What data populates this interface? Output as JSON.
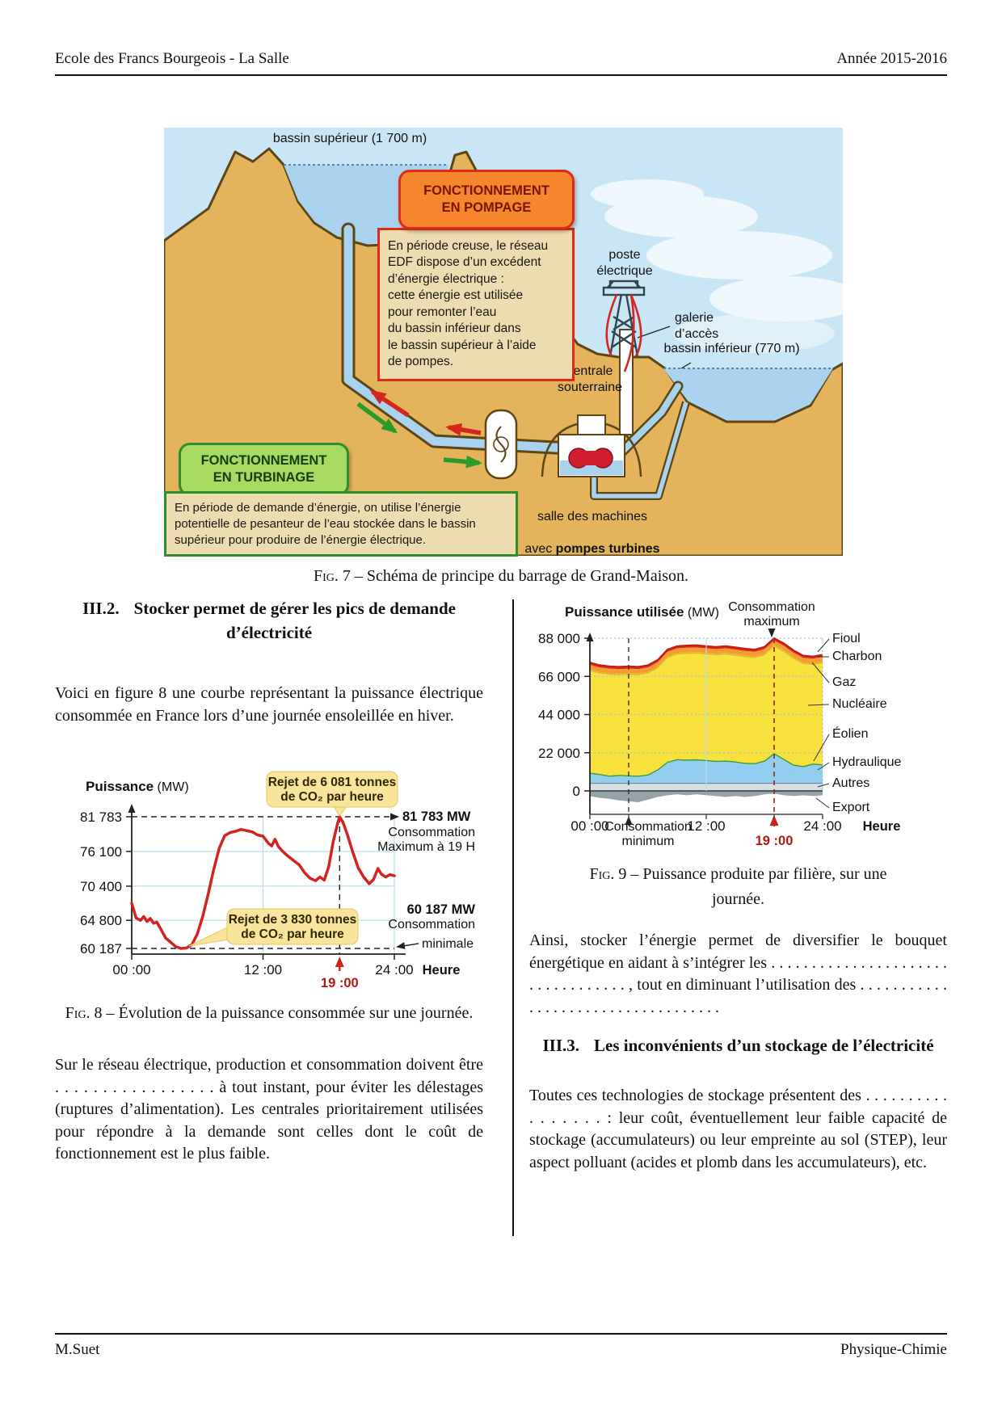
{
  "header": {
    "school": "Ecole des Francs Bourgeois - La Salle",
    "year": "Année 2015-2016"
  },
  "footer": {
    "author": "M.Suet",
    "subject": "Physique-Chimie"
  },
  "figure7": {
    "caption_prefix": "Fig. 7 –",
    "caption_text": "Schéma de principe du barrage de Grand-Maison.",
    "upper_basin": "bassin supérieur (1 700 m)",
    "lower_basin": "bassin inférieur (770 m)",
    "poste": "poste\nélectrique",
    "galerie": "galerie\nd’accès",
    "centrale": "centrale\nsouterraine",
    "salle_line1": "salle des machines",
    "salle_prefix": "avec ",
    "salle_bold": "pompes turbines",
    "pompage_title": "FONCTIONNEMENT\nEN POMPAGE",
    "pompage_body": "En période creuse, le réseau\nEDF dispose d’un excédent\nd’énergie électrique :\ncette én­ergie est utilisée\npour remonter l’eau\ndu bassin inférieur dans\nle bassin supérieur à l’aide\nde pompes.",
    "turbinage_title": "FONCTIONNEMENT\nEN TURBINAGE",
    "turbinage_body": "En période de demande d’énergie, on utilise l’énergie\npotentielle de pesanteur de l’eau stockée dans le bassin\nsupérieur pour produire de l’énergie électrique."
  },
  "section2": {
    "number": "III.2.",
    "title": "Stocker permet de gérer les pics de demande d’électricité",
    "para1": "Voici en figure 8 une courbe représentant la puissance électrique consommée en France lors d’une journée ensoleillée en hiver.",
    "para2": "Sur le réseau électrique, production et consommation doivent être . . . . . . . . . . . . . . . . . à tout instant, pour éviter les délestages (ruptures d’alimentation). Les centrales prioritairement utilisées pour répondre à la demande sont celles dont le coût de fonctionnement est le plus faible."
  },
  "after_fig9_para": "Ainsi, stocker l’énergie permet de diversifier le bouquet énergétique en aidant à s’intégrer les . . . . . . . . . . . . . . . . . . . . . . . . . . . . . . . . . . , tout en diminuant l’utilisation des . . . . . . . . . . . . . . . . . . . . . . . . . . . . . . . . . . .",
  "section3": {
    "number": "III.3.",
    "title": "Les inconvénients d’un stockage de l’électricité",
    "para1": "Toutes ces technologies de stockage présentent des . . . . . . . . . . . . . . . . . : leur coût, éventuellement leur faible capacité de stockage (accumulateurs) ou leur empreinte au sol (STEP), leur aspect polluant (acides et plomb dans les accumulateurs), etc."
  },
  "figure8": {
    "caption_prefix": "Fig. 8 –",
    "caption_text": "Évolution de la puissance consommée sur une journée.",
    "ylabel": "Puissance",
    "ylabel_unit": " (MW)",
    "xlabel": "Heure",
    "chart_data": {
      "type": "line",
      "title": "Évolution de la puissance consommée sur une journée",
      "ylabel": "Puissance (MW)",
      "xlabel": "Heure",
      "ylim": [
        58500,
        84000
      ],
      "yticks": [
        81783,
        76100,
        70400,
        64800,
        60187
      ],
      "ytick_labels": [
        "81 783",
        "76 100",
        "70 400",
        "64 800",
        "60 187"
      ],
      "xticks": [
        0,
        12,
        24
      ],
      "xtick_labels": [
        "00 :00",
        "12 :00",
        "24 :00"
      ],
      "line_color": "#d2241e",
      "x": [
        0,
        0.4,
        0.8,
        1.1,
        1.4,
        1.7,
        2.0,
        2.3,
        2.7,
        3.1,
        3.5,
        4.0,
        4.5,
        5.0,
        5.5,
        6.0,
        6.5,
        7.0,
        7.5,
        8.0,
        8.5,
        9.0,
        9.5,
        10.0,
        10.5,
        11.0,
        11.5,
        12.0,
        12.5,
        12.8,
        13.1,
        13.4,
        13.8,
        14.3,
        14.8,
        15.3,
        15.8,
        16.3,
        16.8,
        17.2,
        17.6,
        18.0,
        18.4,
        18.8,
        19.0,
        19.3,
        19.7,
        20.2,
        20.7,
        21.2,
        21.7,
        22.1,
        22.5,
        22.8,
        23.2,
        23.6,
        24.0
      ],
      "values": [
        67600,
        65200,
        64800,
        65400,
        64600,
        65100,
        64300,
        64500,
        63200,
        61900,
        61300,
        60500,
        60187,
        60250,
        60800,
        62600,
        65500,
        69200,
        73200,
        76600,
        78700,
        79200,
        79400,
        79700,
        79500,
        79300,
        78800,
        78600,
        77400,
        77000,
        78100,
        76900,
        76100,
        75300,
        74600,
        73900,
        72600,
        71700,
        71300,
        71900,
        71400,
        73600,
        77600,
        80600,
        81783,
        80900,
        78900,
        76000,
        73400,
        71900,
        70800,
        71500,
        73300,
        72400,
        71900,
        72300,
        72100
      ],
      "annotations": {
        "max_line1": "81 783 MW",
        "max_line2": "Consommation",
        "max_line3": "Maximum à 19 H",
        "min_line1": "60 187 MW",
        "min_line2": "Consommation",
        "min_line3": "minimale",
        "peak_time": "19 :00",
        "callout_max_1": "Rejet de 6 081 tonnes",
        "callout_max_2": "de CO₂ par heure",
        "callout_min_1": "Rejet de 3 830 tonnes",
        "callout_min_2": "de CO₂ par heure"
      }
    }
  },
  "figure9": {
    "caption_prefix": "Fig. 9 –",
    "caption_text": "Puissance produite par filière, sur une journée.",
    "ylabel": "Puissance utilisée",
    "ylabel_unit": " (MW)",
    "xlabel": "Heure",
    "chart_data": {
      "type": "area",
      "title": "Puissance produite par filière, sur une journée",
      "ylabel": "Puissance utilisée (MW)",
      "xlabel": "Heure",
      "ylim": [
        -8000,
        92000
      ],
      "yticks": [
        88000,
        66000,
        44000,
        22000,
        0
      ],
      "ytick_labels": [
        "88 000",
        "66 000",
        "44 000",
        "22 000",
        "0"
      ],
      "xticks": [
        0,
        12,
        24
      ],
      "xtick_labels": [
        "00 :00",
        "12 :00",
        "24 :00"
      ],
      "x": [
        0,
        1,
        2,
        3,
        4,
        5,
        6,
        7,
        8,
        9,
        10,
        11,
        12,
        13,
        14,
        15,
        16,
        17,
        18,
        19,
        20,
        21,
        22,
        23,
        24
      ],
      "series": [
        {
          "name": "Autres",
          "color": "#d9dde0",
          "values": [
            4500,
            4500,
            4500,
            4500,
            4500,
            4500,
            4500,
            4500,
            4500,
            4500,
            4500,
            4500,
            4500,
            4500,
            4500,
            4500,
            4500,
            4500,
            4500,
            4500,
            4500,
            4500,
            4500,
            4500,
            4500
          ]
        },
        {
          "name": "Hydraulique",
          "color": "#93cdf0",
          "values": [
            5400,
            4700,
            3700,
            4100,
            3900,
            3700,
            4400,
            7400,
            11700,
            13200,
            12900,
            13100,
            12700,
            12200,
            12400,
            11900,
            11100,
            10900,
            12400,
            16700,
            13400,
            10100,
            9200,
            10700,
            10200
          ]
        },
        {
          "name": "Éolien",
          "color": "#4fae4f",
          "values": [
            600,
            600,
            600,
            600,
            600,
            600,
            600,
            600,
            600,
            600,
            600,
            600,
            600,
            600,
            600,
            600,
            600,
            600,
            600,
            600,
            600,
            600,
            600,
            600,
            600
          ]
        },
        {
          "name": "Nucléaire",
          "color": "#f8e13c",
          "values": [
            58600,
            57800,
            58100,
            57400,
            57900,
            57800,
            58100,
            58100,
            59800,
            60300,
            60900,
            60900,
            60800,
            60800,
            61100,
            60900,
            60900,
            60600,
            60600,
            61300,
            61600,
            60900,
            58800,
            56800,
            58300
          ]
        },
        {
          "name": "Gaz",
          "color": "#e0ba25",
          "values": [
            1000,
            1000,
            1000,
            1000,
            1000,
            1000,
            1000,
            1000,
            1000,
            1000,
            1000,
            1000,
            1000,
            1000,
            1000,
            1000,
            1000,
            1000,
            1000,
            1000,
            1000,
            1000,
            1000,
            1000,
            1000
          ]
        },
        {
          "name": "Charbon",
          "color": "#f59b31",
          "values": [
            2600,
            2600,
            2600,
            2600,
            2600,
            2600,
            2600,
            2600,
            2600,
            2600,
            2600,
            2600,
            2600,
            2600,
            2600,
            2600,
            2600,
            2600,
            2600,
            2600,
            2600,
            2600,
            2600,
            2600,
            2600
          ]
        },
        {
          "name": "Fioul",
          "color": "#d62b20",
          "values": [
            1300,
            1300,
            1300,
            1300,
            1300,
            1300,
            1300,
            1300,
            1300,
            1300,
            1300,
            1300,
            1300,
            1300,
            1300,
            1300,
            1300,
            1300,
            1300,
            1300,
            1300,
            1300,
            1300,
            1300,
            1300
          ]
        }
      ],
      "export_series": {
        "name": "Export",
        "color": "#97a2a8",
        "values": [
          -3000,
          -4000,
          -4500,
          -5500,
          -6000,
          -6500,
          -5000,
          -3500,
          -2500,
          -2000,
          -2500,
          -2000,
          -2500,
          -3000,
          -3500,
          -3000,
          -3500,
          -3000,
          -2000,
          -1500,
          -2500,
          -3000,
          -2500,
          -3000,
          -2500
        ]
      },
      "legend": [
        "Fioul",
        "Charbon",
        "Gaz",
        "Nucléaire",
        "Éolien",
        "Hydraulique",
        "Autres",
        "Export"
      ],
      "annotations": {
        "max_line1": "Consommation",
        "max_line2": "maximum",
        "min_line1": "Consommation",
        "min_line2": "minimum",
        "peak_time": "19 :00"
      }
    }
  }
}
